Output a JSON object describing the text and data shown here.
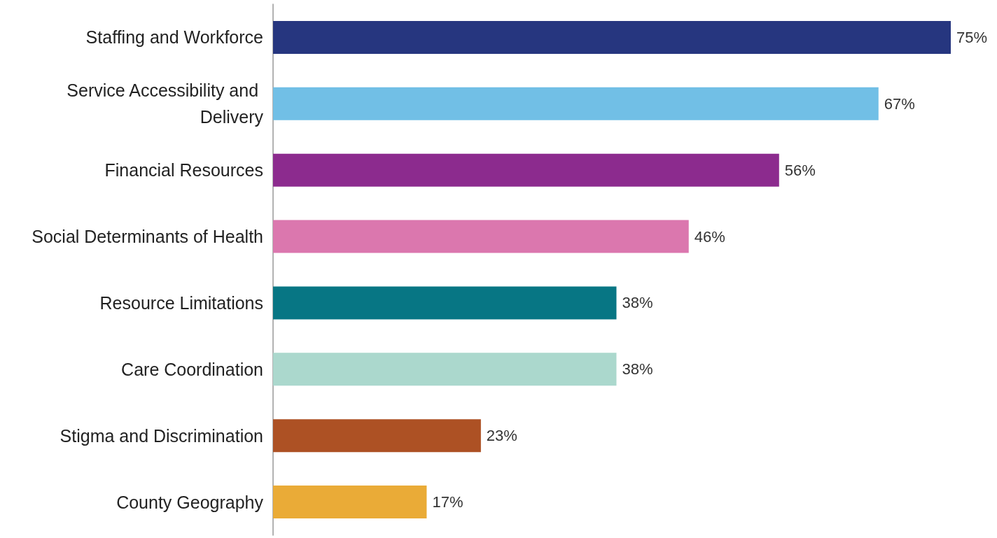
{
  "chart_data": {
    "type": "bar",
    "orientation": "horizontal",
    "categories": [
      "Staffing and Workforce",
      "Service Accessibility and Delivery",
      "Financial Resources",
      "Social Determinants of Health",
      "Resource Limitations",
      "Care Coordination",
      "Stigma and Discrimination",
      "County Geography"
    ],
    "values": [
      75,
      67,
      56,
      46,
      38,
      38,
      23,
      17
    ],
    "value_labels": [
      "75%",
      "67%",
      "56%",
      "46%",
      "38%",
      "38%",
      "23%",
      "17%"
    ],
    "colors": [
      "#26367f",
      "#71bfe6",
      "#8c2b8e",
      "#db77ae",
      "#077684",
      "#abd8cd",
      "#ad5124",
      "#eaab37"
    ]
  }
}
